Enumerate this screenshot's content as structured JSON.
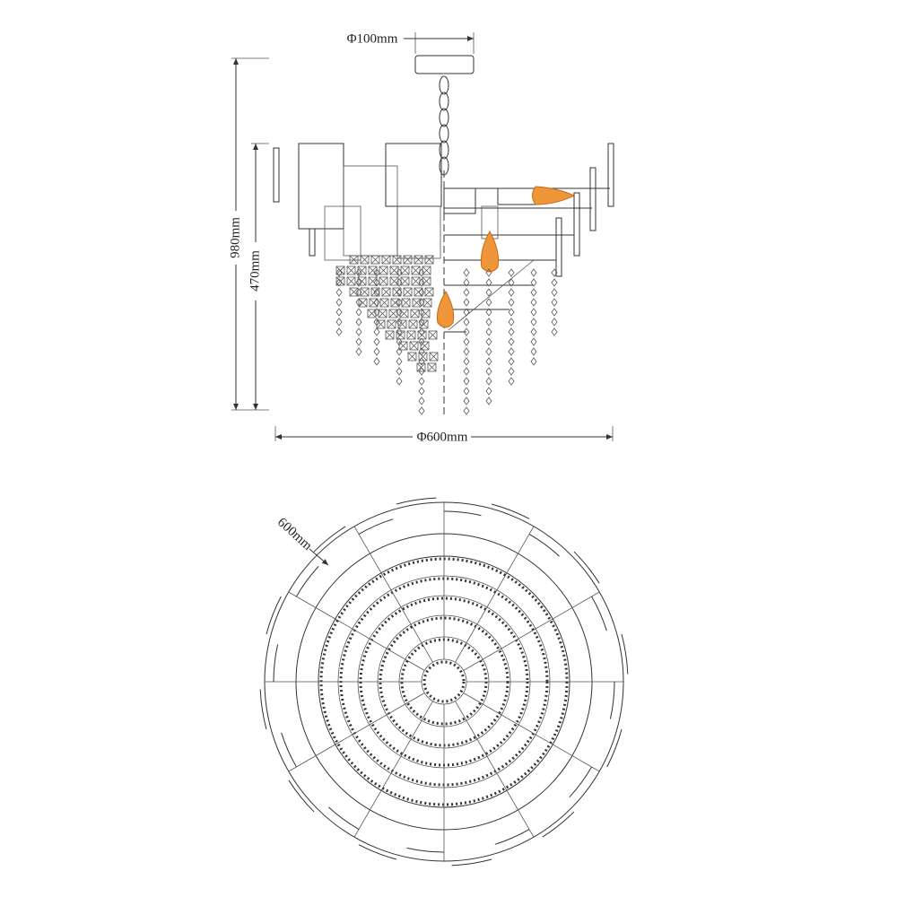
{
  "dimensions": {
    "top_diameter": "Φ100mm",
    "total_height": "980mm",
    "body_height": "470mm",
    "width": "Φ600mm",
    "plan_diameter": "600mm"
  }
}
